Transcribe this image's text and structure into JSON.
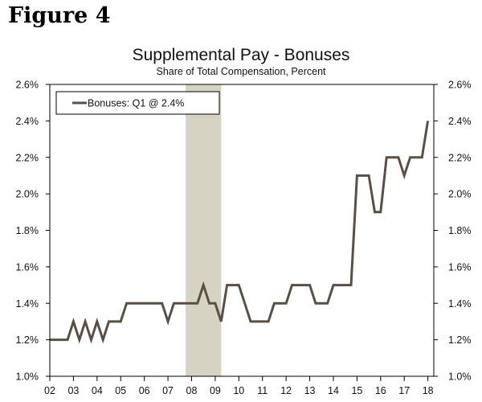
{
  "figure_label": "Figure 4",
  "chart_data": {
    "type": "line",
    "title": "Supplemental Pay - Bonuses",
    "subtitle": "Share of Total Compensation, Percent",
    "xlabel": "",
    "ylabel": "",
    "xlim": [
      2002,
      2018.25
    ],
    "ylim": [
      1.0,
      2.6
    ],
    "y_ticks": [
      "1.0%",
      "1.2%",
      "1.4%",
      "1.6%",
      "1.8%",
      "2.0%",
      "2.2%",
      "2.4%",
      "2.6%"
    ],
    "y_tick_values": [
      1.0,
      1.2,
      1.4,
      1.6,
      1.8,
      2.0,
      2.2,
      2.4,
      2.6
    ],
    "x_ticks": [
      "02",
      "03",
      "04",
      "05",
      "06",
      "07",
      "08",
      "09",
      "10",
      "11",
      "12",
      "13",
      "14",
      "15",
      "16",
      "17",
      "18"
    ],
    "x_tick_values": [
      2002,
      2003,
      2004,
      2005,
      2006,
      2007,
      2008,
      2009,
      2010,
      2011,
      2012,
      2013,
      2014,
      2015,
      2016,
      2017,
      2018
    ],
    "recession_band": [
      2007.75,
      2009.25
    ],
    "legend": {
      "label": "Bonuses: Q1 @ 2.4%",
      "placement": "top-left"
    },
    "grid": false,
    "colors": {
      "line": "#5a4f45",
      "recession": "#d6d3c3",
      "axis": "#000000"
    },
    "series": [
      {
        "name": "Bonuses: Q1 @ 2.4%",
        "x": [
          2002.0,
          2002.25,
          2002.5,
          2002.75,
          2003.0,
          2003.25,
          2003.5,
          2003.75,
          2004.0,
          2004.25,
          2004.5,
          2004.75,
          2005.0,
          2005.25,
          2005.5,
          2005.75,
          2006.0,
          2006.25,
          2006.5,
          2006.75,
          2007.0,
          2007.25,
          2007.5,
          2007.75,
          2008.0,
          2008.25,
          2008.5,
          2008.75,
          2009.0,
          2009.25,
          2009.5,
          2009.75,
          2010.0,
          2010.25,
          2010.5,
          2010.75,
          2011.0,
          2011.25,
          2011.5,
          2011.75,
          2012.0,
          2012.25,
          2012.5,
          2012.75,
          2013.0,
          2013.25,
          2013.5,
          2013.75,
          2014.0,
          2014.25,
          2014.5,
          2014.75,
          2015.0,
          2015.25,
          2015.5,
          2015.75,
          2016.0,
          2016.25,
          2016.5,
          2016.75,
          2017.0,
          2017.25,
          2017.5,
          2017.75,
          2018.0
        ],
        "values": [
          1.2,
          1.2,
          1.2,
          1.2,
          1.3,
          1.2,
          1.3,
          1.2,
          1.3,
          1.2,
          1.3,
          1.3,
          1.3,
          1.4,
          1.4,
          1.4,
          1.4,
          1.4,
          1.4,
          1.4,
          1.3,
          1.4,
          1.4,
          1.4,
          1.4,
          1.4,
          1.5,
          1.4,
          1.4,
          1.3,
          1.5,
          1.5,
          1.5,
          1.4,
          1.3,
          1.3,
          1.3,
          1.3,
          1.4,
          1.4,
          1.4,
          1.5,
          1.5,
          1.5,
          1.5,
          1.4,
          1.4,
          1.4,
          1.5,
          1.5,
          1.5,
          1.5,
          2.1,
          2.1,
          2.1,
          1.9,
          1.9,
          2.2,
          2.2,
          2.2,
          2.1,
          2.2,
          2.2,
          2.2,
          2.4
        ]
      }
    ]
  }
}
